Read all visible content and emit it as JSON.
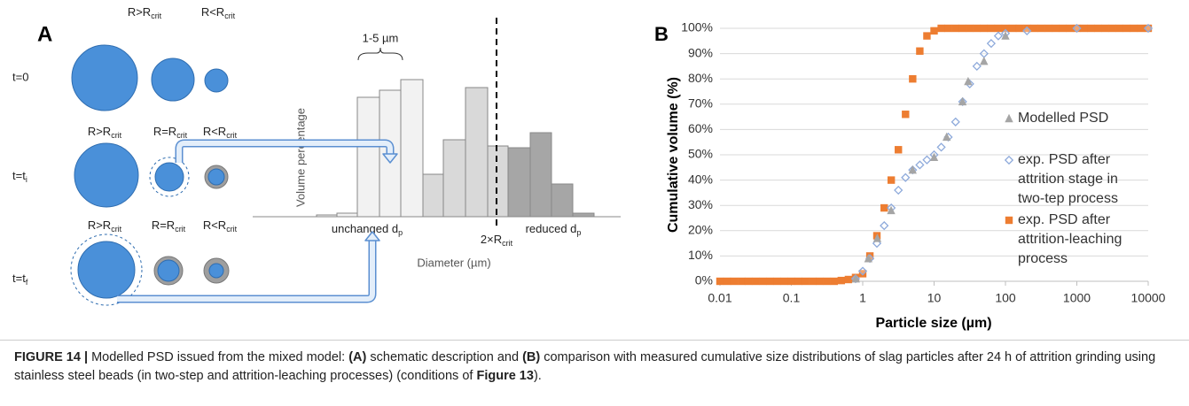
{
  "panel_a": {
    "label": "A",
    "row_labels": [
      {
        "main": "t=0"
      },
      {
        "main": "t=t",
        "sub": "i"
      },
      {
        "main": "t=t",
        "sub": "f"
      }
    ],
    "circle_labels": [
      [
        {
          "main": "R>R",
          "sub": "crit"
        },
        {
          "main": "R<R",
          "sub": "crit"
        }
      ],
      [
        {
          "main": "R>R",
          "sub": "crit"
        },
        {
          "main": "R=R",
          "sub": "crit"
        },
        {
          "main": "R<R",
          "sub": "crit"
        }
      ],
      [
        {
          "main": "R>R",
          "sub": "crit"
        },
        {
          "main": "R=R",
          "sub": "crit"
        },
        {
          "main": "R<R",
          "sub": "crit"
        }
      ]
    ],
    "histogram": {
      "range_label": "1-5 µm",
      "y_label": "Volume percentage",
      "x_label": "Diameter (µm)",
      "left_label": {
        "main": "unchanged d",
        "sub": "p"
      },
      "divider_label": {
        "main": "2×R",
        "sub": "crit"
      },
      "right_label": {
        "main": "reduced d",
        "sub": "p"
      }
    }
  },
  "chart_data": {
    "type": "scatter",
    "panel_label": "B",
    "xlabel": "Particle size (µm)",
    "ylabel": "Cumulative volume (%)",
    "xscale": "log",
    "xlim": [
      0.01,
      10000
    ],
    "ylim": [
      0,
      100
    ],
    "xticks": [
      0.01,
      0.1,
      1,
      10,
      100,
      1000,
      10000
    ],
    "yticks": [
      {
        "value": 0,
        "label": "0%"
      },
      {
        "value": 10,
        "label": "10%"
      },
      {
        "value": 20,
        "label": "20%"
      },
      {
        "value": 30,
        "label": "30%"
      },
      {
        "value": 40,
        "label": "40%"
      },
      {
        "value": 50,
        "label": "50%"
      },
      {
        "value": 60,
        "label": "60%"
      },
      {
        "value": 70,
        "label": "70%"
      },
      {
        "value": 80,
        "label": "80%"
      },
      {
        "value": 90,
        "label": "90%"
      },
      {
        "value": 100,
        "label": "100%"
      }
    ],
    "grid": true,
    "series": [
      {
        "name": "exp. PSD after attrition-leaching process",
        "color": "#ed7d31",
        "marker": "square",
        "x": [
          0.01,
          0.0126,
          0.0158,
          0.02,
          0.0251,
          0.0316,
          0.0398,
          0.0501,
          0.0631,
          0.0794,
          0.1,
          0.126,
          0.158,
          0.2,
          0.251,
          0.316,
          0.398,
          0.501,
          0.631,
          0.794,
          1,
          1.26,
          1.58,
          2,
          2.51,
          3.16,
          3.98,
          5.01,
          6.31,
          7.94,
          10,
          12.6,
          15.8,
          20,
          25.1,
          31.6,
          39.8,
          50.1,
          63.1,
          79.4,
          100,
          126,
          158,
          200,
          251,
          316,
          398,
          501,
          631,
          794,
          1000,
          1259,
          1585,
          1995,
          2512,
          3162,
          3981,
          5012,
          6310,
          7943,
          10000
        ],
        "values": [
          0,
          0,
          0,
          0,
          0,
          0,
          0,
          0,
          0,
          0,
          0,
          0,
          0,
          0,
          0,
          0,
          0,
          0.3,
          0.7,
          1.5,
          3,
          10,
          18,
          29,
          40,
          52,
          66,
          80,
          91,
          97,
          99,
          100,
          100,
          100,
          100,
          100,
          100,
          100,
          100,
          100,
          100,
          100,
          100,
          100,
          100,
          100,
          100,
          100,
          100,
          100,
          100,
          100,
          100,
          100,
          100,
          100,
          100,
          100,
          100,
          100,
          100
        ]
      },
      {
        "name": "exp. PSD after attrition stage in two-tep process",
        "color": "#8eaadb",
        "marker": "diamond",
        "x": [
          0.794,
          1,
          1.26,
          1.58,
          2,
          2.51,
          3.16,
          3.98,
          5.01,
          6.31,
          7.94,
          10,
          12.6,
          15.8,
          20,
          25.1,
          31.6,
          39.8,
          50.1,
          63.1,
          79.4,
          100,
          200,
          1000,
          10000
        ],
        "values": [
          1,
          4,
          9,
          15,
          22,
          29,
          36,
          41,
          44,
          46,
          48,
          50,
          53,
          57,
          63,
          71,
          78,
          85,
          90,
          94,
          97,
          98,
          99,
          100,
          100
        ]
      },
      {
        "name": "Modelled PSD",
        "color": "#a5a5a5",
        "marker": "triangle",
        "x": [
          0.8,
          1.2,
          1.6,
          2.5,
          5,
          10,
          15,
          25,
          30,
          50,
          100
        ],
        "values": [
          1,
          9,
          17,
          28,
          44,
          49,
          57,
          71,
          79,
          87,
          97
        ]
      }
    ]
  },
  "caption": {
    "parts": [
      "FIGURE 14 |",
      "Modelled PSD issued from the mixed model:",
      "(A)",
      "schematic description and",
      "(B)",
      "comparison with measured cumulative size distributions of slag particles after 24 h of attrition grinding using stainless steel beads (in two-step and attrition-leaching processes) (conditions of",
      "Figure 13",
      ")."
    ]
  }
}
